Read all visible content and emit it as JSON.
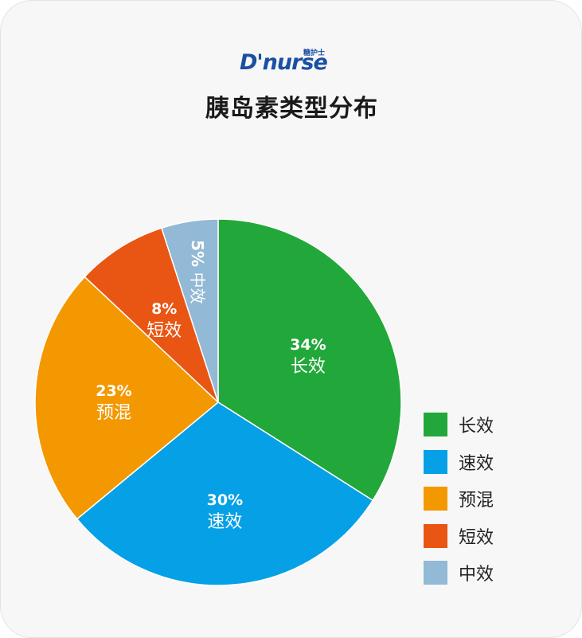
{
  "logo": {
    "text": "D'nurse",
    "cn": "糖护士"
  },
  "chart_data": {
    "type": "pie",
    "title": "胰岛素类型分布",
    "slices": [
      {
        "label": "长效",
        "value": 34,
        "display": "34%",
        "color": "#22a83a"
      },
      {
        "label": "速效",
        "value": 30,
        "display": "30%",
        "color": "#06a0e6"
      },
      {
        "label": "预混",
        "value": 23,
        "display": "23%",
        "color": "#f39800"
      },
      {
        "label": "短效",
        "value": 8,
        "display": "8%",
        "color": "#e95513"
      },
      {
        "label": "中效",
        "value": 5,
        "display": "5%",
        "color": "#92b9d5"
      }
    ],
    "legend": {
      "position": "right",
      "items": [
        "长效",
        "速效",
        "预混",
        "短效",
        "中效"
      ]
    }
  }
}
